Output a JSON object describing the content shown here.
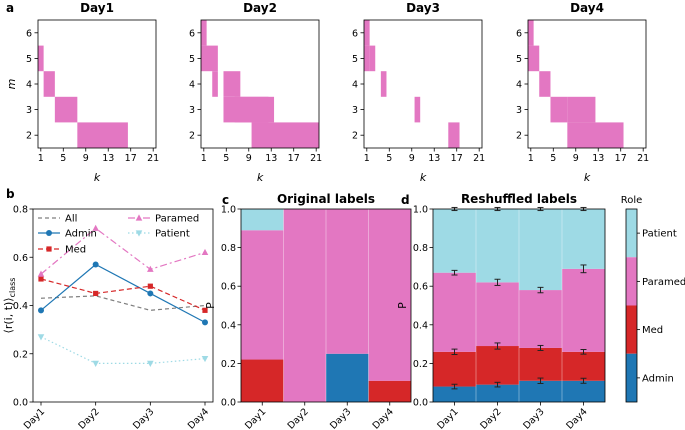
{
  "panel_letters": {
    "a": "a",
    "b": "b",
    "c": "c",
    "d": "d"
  },
  "colors": {
    "pink": "#e377c2",
    "admin": "#1f77b4",
    "med": "#d62728",
    "paramed": "#e377c2",
    "patient": "#9edae5",
    "all": "#7f7f7f"
  },
  "chart_data": [
    {
      "type": "heatmap",
      "panel": "a",
      "xlabel": "k",
      "ylabel": "m",
      "x_ticks": [
        "1",
        "5",
        "9",
        "13",
        "17",
        "21"
      ],
      "y_ticks": [
        "2",
        "3",
        "4",
        "5",
        "6"
      ],
      "xlim": [
        0.5,
        21.5
      ],
      "ylim": [
        1.5,
        6.5
      ],
      "panels": [
        {
          "title": "Day1",
          "cells": [
            [
              0.5,
              1.5,
              4.5,
              5.5
            ],
            [
              1.5,
              3.5,
              3.5,
              4.5
            ],
            [
              3.5,
              7.5,
              2.5,
              3.5
            ],
            [
              7.5,
              16.5,
              1.5,
              2.5
            ]
          ]
        },
        {
          "title": "Day2",
          "cells": [
            [
              0.5,
              1.5,
              5.5,
              6.5
            ],
            [
              0.5,
              3.5,
              4.5,
              5.5
            ],
            [
              2.5,
              3.5,
              3.5,
              4.5
            ],
            [
              4.5,
              7.5,
              3.5,
              4.5
            ],
            [
              4.5,
              12.5,
              2.5,
              3.5
            ],
            [
              6.5,
              13.5,
              2.5,
              3.5
            ],
            [
              9.5,
              21.5,
              1.5,
              2.5
            ]
          ]
        },
        {
          "title": "Day3",
          "cells": [
            [
              0.5,
              1.5,
              5.5,
              6.5
            ],
            [
              0.5,
              1.5,
              4.5,
              5.5
            ],
            [
              1.5,
              2.5,
              4.5,
              5.5
            ],
            [
              3.5,
              4.5,
              3.5,
              4.5
            ],
            [
              9.5,
              10.5,
              2.5,
              3.5
            ],
            [
              15.5,
              17.5,
              1.5,
              2.5
            ]
          ]
        },
        {
          "title": "Day4",
          "cells": [
            [
              0.5,
              1.5,
              5.5,
              6.5
            ],
            [
              0.5,
              2.5,
              4.5,
              5.5
            ],
            [
              2.5,
              4.5,
              3.5,
              4.5
            ],
            [
              4.5,
              7.5,
              2.5,
              3.5
            ],
            [
              7.5,
              12.5,
              2.5,
              3.5
            ],
            [
              7.5,
              17.5,
              1.5,
              2.5
            ]
          ]
        }
      ]
    },
    {
      "type": "line",
      "panel": "b",
      "categories": [
        "Day1",
        "Day2",
        "Day3",
        "Day4"
      ],
      "ylabel": "⟨r(i, t)⟩class",
      "ylim": [
        0.0,
        0.8
      ],
      "y_ticks": [
        "0.0",
        "0.2",
        "0.4",
        "0.6",
        "0.8"
      ],
      "legend_position": "top",
      "series": [
        {
          "name": "All",
          "values": [
            0.43,
            0.44,
            0.38,
            0.4
          ],
          "color": "#7f7f7f",
          "dash": "4 3",
          "marker": "none"
        },
        {
          "name": "Admin",
          "values": [
            0.38,
            0.57,
            0.45,
            0.33
          ],
          "color": "#1f77b4",
          "dash": "",
          "marker": "circle"
        },
        {
          "name": "Med",
          "values": [
            0.51,
            0.45,
            0.48,
            0.38
          ],
          "color": "#d62728",
          "dash": "5 3",
          "marker": "square"
        },
        {
          "name": "Paramed",
          "values": [
            0.53,
            0.72,
            0.55,
            0.62
          ],
          "color": "#e377c2",
          "dash": "7 3 2 3",
          "marker": "triangle-up"
        },
        {
          "name": "Patient",
          "values": [
            0.27,
            0.16,
            0.16,
            0.18
          ],
          "color": "#9edae5",
          "dash": "1.5 2.5",
          "marker": "triangle-down"
        }
      ]
    },
    {
      "type": "bar",
      "panel": "c",
      "title": "Original labels",
      "categories": [
        "Day1",
        "Day2",
        "Day3",
        "Day4"
      ],
      "ylabel": "P",
      "ylim": [
        0.0,
        1.0
      ],
      "y_ticks": [
        "0.0",
        "0.2",
        "0.4",
        "0.6",
        "0.8",
        "1.0"
      ],
      "stacked": true,
      "series": [
        {
          "name": "Admin",
          "values": [
            0.0,
            0.0,
            0.25,
            0.0
          ],
          "color": "#1f77b4"
        },
        {
          "name": "Med",
          "values": [
            0.22,
            0.0,
            0.0,
            0.11
          ],
          "color": "#d62728"
        },
        {
          "name": "Paramed",
          "values": [
            0.67,
            1.0,
            0.75,
            0.89
          ],
          "color": "#e377c2"
        },
        {
          "name": "Patient",
          "values": [
            0.11,
            0.0,
            0.0,
            0.0
          ],
          "color": "#9edae5"
        }
      ]
    },
    {
      "type": "bar",
      "panel": "d",
      "title": "Reshuffled labels",
      "categories": [
        "Day1",
        "Day2",
        "Day3",
        "Day4"
      ],
      "ylabel": "P",
      "ylim": [
        0.0,
        1.0
      ],
      "y_ticks": [
        "0.0",
        "0.2",
        "0.4",
        "0.6",
        "0.8",
        "1.0"
      ],
      "stacked": true,
      "boundaries": [
        {
          "tops": [
            0.08,
            0.09,
            0.11,
            0.11
          ],
          "errs": [
            0.012,
            0.012,
            0.014,
            0.013
          ]
        },
        {
          "tops": [
            0.26,
            0.29,
            0.28,
            0.26
          ],
          "errs": [
            0.014,
            0.016,
            0.013,
            0.012
          ]
        },
        {
          "tops": [
            0.67,
            0.62,
            0.58,
            0.69
          ],
          "errs": [
            0.012,
            0.016,
            0.014,
            0.02
          ]
        },
        {
          "tops": [
            1.0,
            1.0,
            1.0,
            1.0
          ],
          "errs": [
            0.008,
            0.008,
            0.008,
            0.008
          ]
        }
      ],
      "series": [
        {
          "name": "Admin",
          "values": [
            0.08,
            0.09,
            0.11,
            0.11
          ],
          "color": "#1f77b4"
        },
        {
          "name": "Med",
          "values": [
            0.18,
            0.2,
            0.17,
            0.15
          ],
          "color": "#d62728"
        },
        {
          "name": "Paramed",
          "values": [
            0.41,
            0.33,
            0.3,
            0.43
          ],
          "color": "#e377c2"
        },
        {
          "name": "Patient",
          "values": [
            0.33,
            0.38,
            0.42,
            0.31
          ],
          "color": "#9edae5"
        }
      ],
      "colorbar": {
        "title": "Role",
        "labels": [
          "Patient",
          "Paramed",
          "Med",
          "Admin"
        ],
        "colors": [
          "#9edae5",
          "#e377c2",
          "#d62728",
          "#1f77b4"
        ]
      }
    }
  ]
}
